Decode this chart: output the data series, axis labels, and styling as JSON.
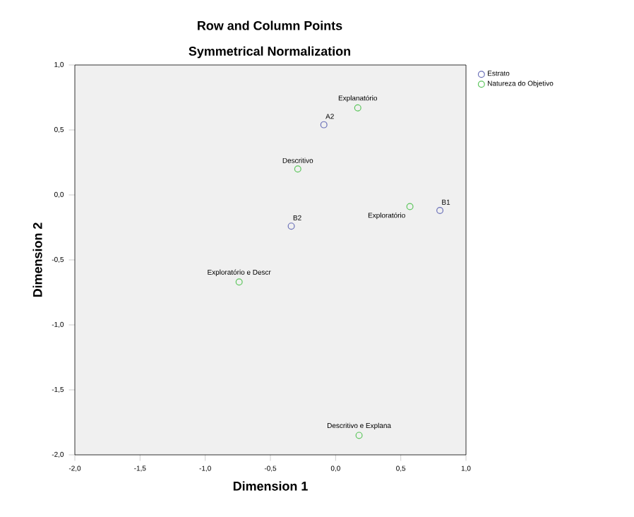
{
  "chart_data": {
    "type": "scatter",
    "title": "Row and Column Points",
    "subtitle": "Symmetrical Normalization",
    "xlabel": "Dimension 1",
    "ylabel": "Dimension 2",
    "xlim": [
      -2,
      1
    ],
    "ylim": [
      -2,
      1
    ],
    "xticks": [
      {
        "value": -2,
        "label": "-2,0"
      },
      {
        "value": -1.5,
        "label": "-1,5"
      },
      {
        "value": -1,
        "label": "-1,0"
      },
      {
        "value": -0.5,
        "label": "-0,5"
      },
      {
        "value": 0,
        "label": "0,0"
      },
      {
        "value": 0.5,
        "label": "0,5"
      },
      {
        "value": 1,
        "label": "1,0"
      }
    ],
    "yticks": [
      {
        "value": -2,
        "label": "-2,0"
      },
      {
        "value": -1.5,
        "label": "-1,5"
      },
      {
        "value": -1,
        "label": "-1,0"
      },
      {
        "value": -0.5,
        "label": "-0,5"
      },
      {
        "value": 0,
        "label": "0,0"
      },
      {
        "value": 0.5,
        "label": "0,5"
      },
      {
        "value": 1,
        "label": "1,0"
      }
    ],
    "marker": "circle",
    "legend": "top right",
    "grid": false,
    "series": [
      {
        "name": "Estrato",
        "color": "#6a70b8",
        "x": [
          -0.09,
          0.8,
          -0.34
        ],
        "values": [
          0.54,
          -0.12,
          -0.24
        ]
      },
      {
        "name": "Natureza do Objetivo",
        "color": "#5cc65c",
        "x": [
          0.17,
          -0.29,
          0.57,
          -0.74,
          0.18
        ],
        "values": [
          0.67,
          0.2,
          -0.09,
          -0.67,
          -1.85
        ]
      }
    ],
    "annotations": [
      {
        "text": "A2",
        "x": -0.09,
        "y": 0.54
      },
      {
        "text": "B1",
        "x": 0.8,
        "y": -0.12
      },
      {
        "text": "B2",
        "x": -0.34,
        "y": -0.24
      },
      {
        "text": "Explanatório",
        "x": 0.17,
        "y": 0.67
      },
      {
        "text": "Descritivo",
        "x": -0.29,
        "y": 0.2
      },
      {
        "text": "Exploratório",
        "x": 0.57,
        "y": -0.09
      },
      {
        "text": "Exploratório e Descr",
        "x": -0.74,
        "y": -0.67
      },
      {
        "text": "Descritivo e Explana",
        "x": 0.18,
        "y": -1.85
      }
    ]
  }
}
